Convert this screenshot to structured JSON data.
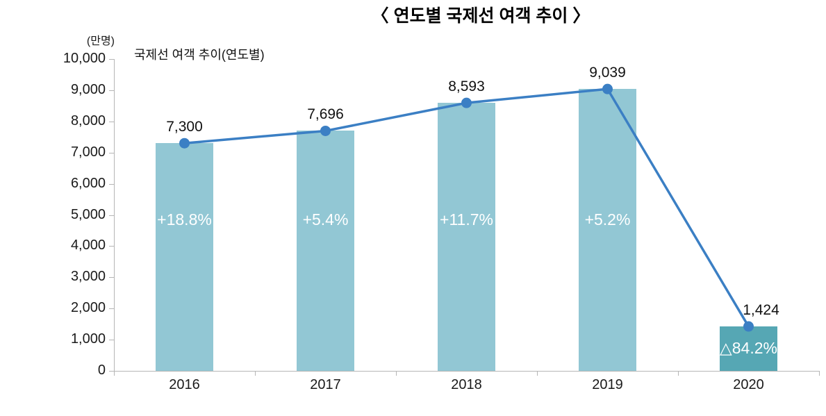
{
  "title": "〈 연도별 국제선 여객 추이 〉",
  "y_unit_label": "(만명)",
  "inner_label": "국제선 여객 추이(연도별)",
  "chart_data": {
    "type": "bar",
    "line_overlay": true,
    "title": "〈 연도별 국제선 여객 추이 〉",
    "subtitle": "국제선 여객 추이(연도별)",
    "xlabel": "",
    "ylabel": "(만명)",
    "categories": [
      "2016",
      "2017",
      "2018",
      "2019",
      "2020"
    ],
    "values": [
      7300,
      7696,
      8593,
      9039,
      1424
    ],
    "value_labels": [
      "7,300",
      "7,696",
      "8,593",
      "9,039",
      "1,424"
    ],
    "change_labels": [
      "+18.8%",
      "+5.4%",
      "+11.7%",
      "+5.2%",
      "△84.2%"
    ],
    "ylim": [
      0,
      10000
    ],
    "ytick_step": 1000,
    "ytick_labels": [
      "0",
      "1,000",
      "2,000",
      "3,000",
      "4,000",
      "5,000",
      "6,000",
      "7,000",
      "8,000",
      "9,000",
      "10,000"
    ],
    "grid": false,
    "legend": "none",
    "colors": {
      "bar_colors": [
        "#92c7d4",
        "#92c7d4",
        "#92c7d4",
        "#92c7d4",
        "#56a7b4"
      ],
      "line": "#3b7fc4",
      "marker": "#3b7fc4",
      "axis": "#b5b5b5",
      "bar_label_text": "#ffffff",
      "text": "#1a1a1a"
    }
  }
}
